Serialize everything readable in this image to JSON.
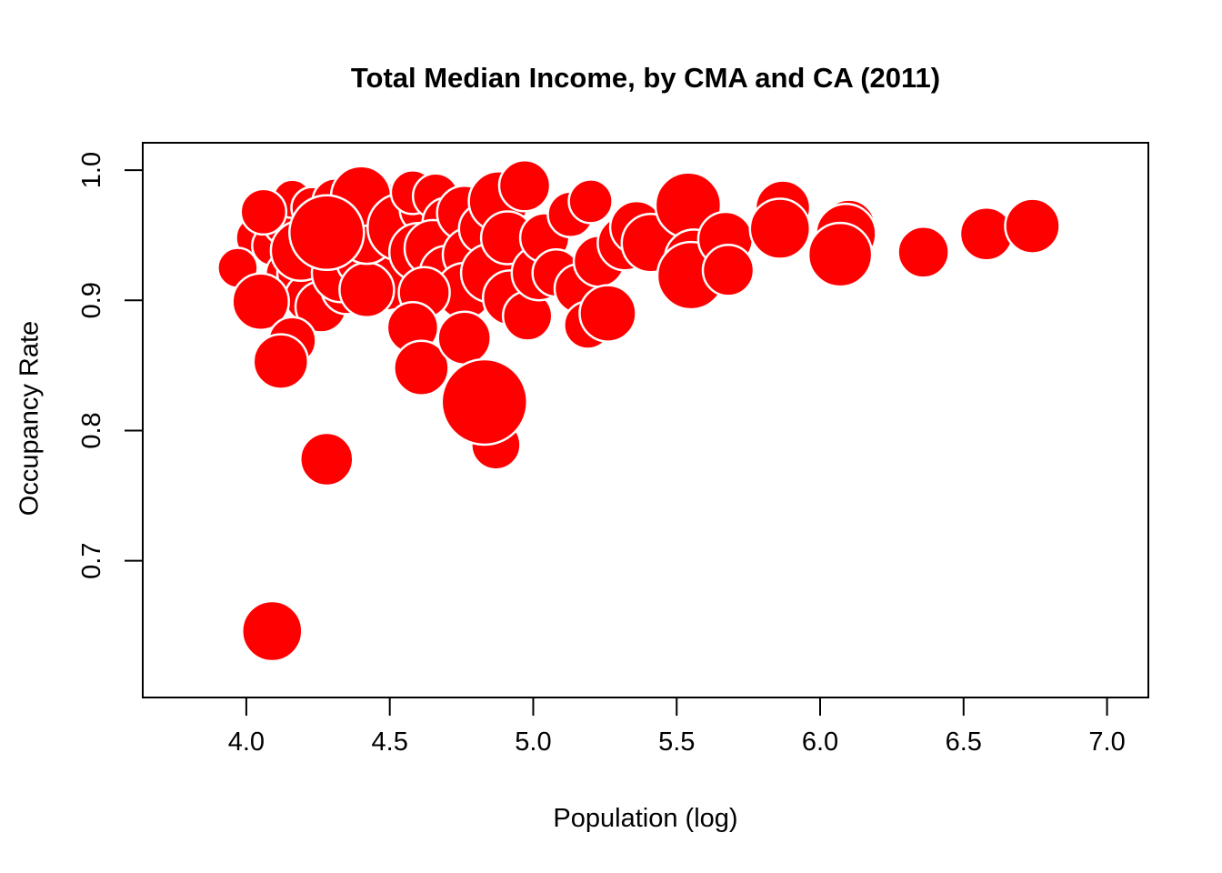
{
  "chart_data": {
    "type": "scatter",
    "title": "Total Median Income, by CMA and CA (2011)",
    "xlabel": "Population (log)",
    "ylabel": "Occupancy Rate",
    "xlim": [
      3.639,
      7.144
    ],
    "ylim": [
      0.595,
      1.021
    ],
    "x_ticks": [
      4.0,
      4.5,
      5.0,
      5.5,
      6.0,
      6.5,
      7.0
    ],
    "x_tick_labels": [
      "4.0",
      "4.5",
      "5.0",
      "5.5",
      "6.0",
      "6.5",
      "7.0"
    ],
    "y_ticks": [
      0.7,
      0.8,
      0.9,
      1.0
    ],
    "y_tick_labels": [
      "0.7",
      "0.8",
      "0.9",
      "1.0"
    ],
    "grid": false,
    "legend": "none",
    "marker_fill": "#FF0000",
    "marker_stroke": "#FFFFFF",
    "axis_color": "#000000",
    "background": "#FFFFFF",
    "size_note": "bubble radius in px (encodes total median income)",
    "points": [
      {
        "x": 4.04,
        "y": 0.948,
        "r": 24
      },
      {
        "x": 4.09,
        "y": 0.942,
        "r": 22
      },
      {
        "x": 4.14,
        "y": 0.96,
        "r": 26
      },
      {
        "x": 4.16,
        "y": 0.978,
        "r": 21
      },
      {
        "x": 4.23,
        "y": 0.971,
        "r": 23
      },
      {
        "x": 4.31,
        "y": 0.976,
        "r": 25
      },
      {
        "x": 4.12,
        "y": 0.907,
        "r": 24
      },
      {
        "x": 4.15,
        "y": 0.92,
        "r": 26
      },
      {
        "x": 4.2,
        "y": 0.921,
        "r": 29
      },
      {
        "x": 4.22,
        "y": 0.902,
        "r": 27
      },
      {
        "x": 3.97,
        "y": 0.925,
        "r": 22
      },
      {
        "x": 4.06,
        "y": 0.968,
        "r": 25
      },
      {
        "x": 4.19,
        "y": 0.938,
        "r": 33
      },
      {
        "x": 4.26,
        "y": 0.895,
        "r": 28
      },
      {
        "x": 4.05,
        "y": 0.899,
        "r": 31
      },
      {
        "x": 4.16,
        "y": 0.869,
        "r": 26
      },
      {
        "x": 4.12,
        "y": 0.853,
        "r": 30
      },
      {
        "x": 4.35,
        "y": 0.909,
        "r": 28
      },
      {
        "x": 4.33,
        "y": 0.921,
        "r": 32
      },
      {
        "x": 4.4,
        "y": 0.93,
        "r": 27
      },
      {
        "x": 4.49,
        "y": 0.914,
        "r": 31
      },
      {
        "x": 4.42,
        "y": 0.908,
        "r": 30
      },
      {
        "x": 4.46,
        "y": 0.961,
        "r": 26
      },
      {
        "x": 4.42,
        "y": 0.949,
        "r": 30
      },
      {
        "x": 4.5,
        "y": 0.97,
        "r": 28
      },
      {
        "x": 4.4,
        "y": 0.98,
        "r": 33
      },
      {
        "x": 4.28,
        "y": 0.952,
        "r": 41
      },
      {
        "x": 4.54,
        "y": 0.956,
        "r": 37
      },
      {
        "x": 4.62,
        "y": 0.97,
        "r": 27
      },
      {
        "x": 4.58,
        "y": 0.983,
        "r": 24
      },
      {
        "x": 4.66,
        "y": 0.98,
        "r": 25
      },
      {
        "x": 4.7,
        "y": 0.96,
        "r": 27
      },
      {
        "x": 4.6,
        "y": 0.937,
        "r": 32
      },
      {
        "x": 4.65,
        "y": 0.94,
        "r": 31
      },
      {
        "x": 4.7,
        "y": 0.921,
        "r": 30
      },
      {
        "x": 4.76,
        "y": 0.967,
        "r": 30
      },
      {
        "x": 4.78,
        "y": 0.935,
        "r": 30
      },
      {
        "x": 4.76,
        "y": 0.907,
        "r": 31
      },
      {
        "x": 4.62,
        "y": 0.906,
        "r": 28
      },
      {
        "x": 4.58,
        "y": 0.879,
        "r": 28
      },
      {
        "x": 4.61,
        "y": 0.848,
        "r": 30
      },
      {
        "x": 4.76,
        "y": 0.871,
        "r": 29
      },
      {
        "x": 4.83,
        "y": 0.955,
        "r": 28
      },
      {
        "x": 4.85,
        "y": 0.921,
        "r": 32
      },
      {
        "x": 4.88,
        "y": 0.976,
        "r": 33
      },
      {
        "x": 4.91,
        "y": 0.948,
        "r": 29
      },
      {
        "x": 4.97,
        "y": 0.988,
        "r": 28
      },
      {
        "x": 4.92,
        "y": 0.902,
        "r": 30
      },
      {
        "x": 4.98,
        "y": 0.888,
        "r": 27
      },
      {
        "x": 5.02,
        "y": 0.921,
        "r": 30
      },
      {
        "x": 5.04,
        "y": 0.948,
        "r": 27
      },
      {
        "x": 5.08,
        "y": 0.921,
        "r": 26
      },
      {
        "x": 5.13,
        "y": 0.966,
        "r": 25
      },
      {
        "x": 5.2,
        "y": 0.976,
        "r": 24
      },
      {
        "x": 5.16,
        "y": 0.909,
        "r": 27
      },
      {
        "x": 5.19,
        "y": 0.881,
        "r": 26
      },
      {
        "x": 5.23,
        "y": 0.93,
        "r": 28
      },
      {
        "x": 5.26,
        "y": 0.89,
        "r": 31
      },
      {
        "x": 5.32,
        "y": 0.944,
        "r": 30
      },
      {
        "x": 5.36,
        "y": 0.956,
        "r": 29
      },
      {
        "x": 5.41,
        "y": 0.944,
        "r": 32
      },
      {
        "x": 5.54,
        "y": 0.973,
        "r": 36
      },
      {
        "x": 5.56,
        "y": 0.932,
        "r": 32
      },
      {
        "x": 5.55,
        "y": 0.919,
        "r": 37
      },
      {
        "x": 5.67,
        "y": 0.947,
        "r": 30
      },
      {
        "x": 5.68,
        "y": 0.923,
        "r": 28
      },
      {
        "x": 5.87,
        "y": 0.971,
        "r": 30
      },
      {
        "x": 5.86,
        "y": 0.955,
        "r": 33
      },
      {
        "x": 6.1,
        "y": 0.957,
        "r": 29
      },
      {
        "x": 6.09,
        "y": 0.951,
        "r": 33
      },
      {
        "x": 6.07,
        "y": 0.935,
        "r": 35
      },
      {
        "x": 6.36,
        "y": 0.937,
        "r": 28
      },
      {
        "x": 6.58,
        "y": 0.951,
        "r": 29
      },
      {
        "x": 6.74,
        "y": 0.957,
        "r": 30
      },
      {
        "x": 4.87,
        "y": 0.789,
        "r": 27
      },
      {
        "x": 4.83,
        "y": 0.822,
        "r": 47
      },
      {
        "x": 4.28,
        "y": 0.778,
        "r": 29
      },
      {
        "x": 4.09,
        "y": 0.646,
        "r": 33
      }
    ]
  }
}
